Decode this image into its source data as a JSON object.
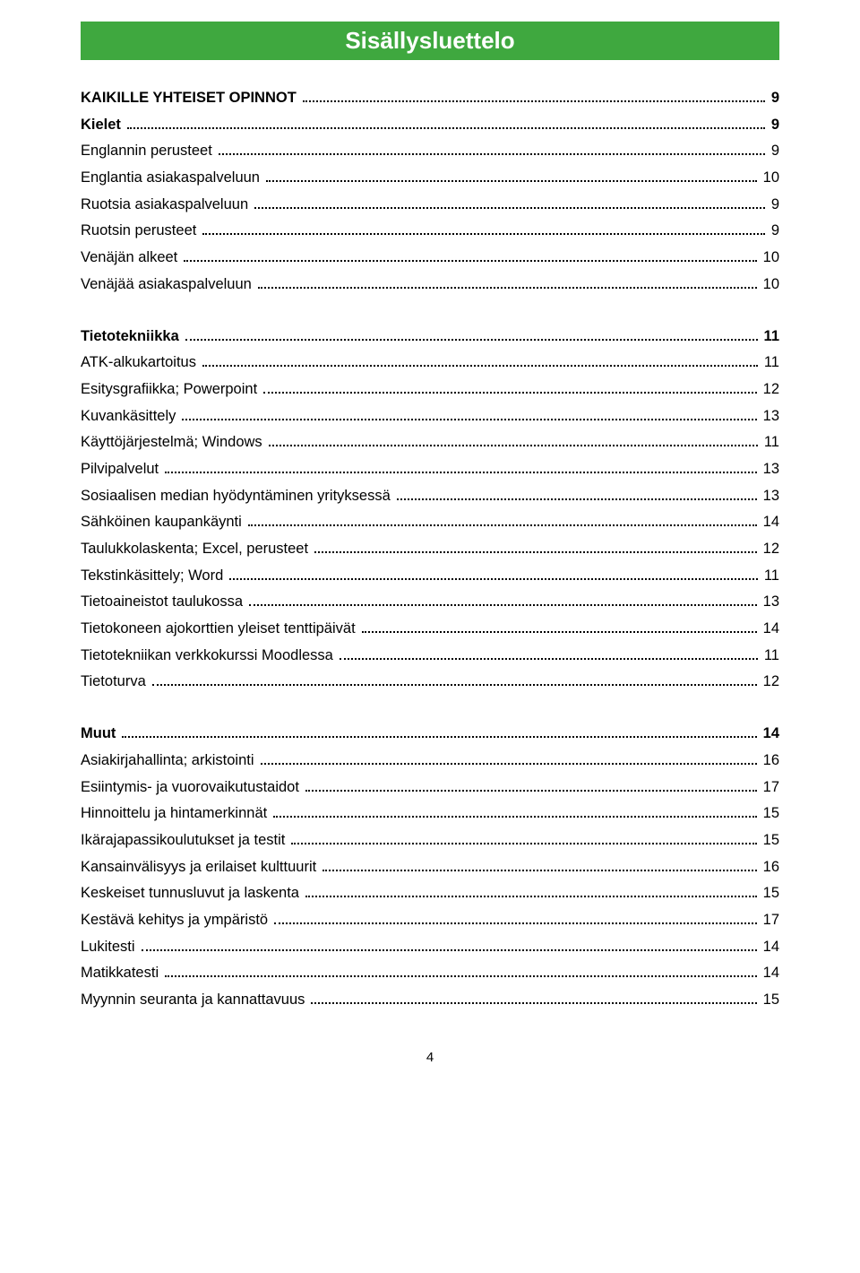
{
  "title": "Sisällysluettelo",
  "pageNumber": "4",
  "colors": {
    "titleBarBg": "#3fa83f",
    "titleText": "#ffffff",
    "bodyText": "#000000",
    "background": "#ffffff"
  },
  "typography": {
    "titleFontSize": 26,
    "bodyFontSize": 16.5,
    "lineHeight": 1.8
  },
  "sections": [
    {
      "label": "KAIKILLE YHTEISET OPINNOT",
      "page": "9",
      "bold": true
    },
    {
      "label": "Kielet",
      "page": "9",
      "bold": true
    },
    {
      "label": "Englannin perusteet",
      "page": "9",
      "bold": false
    },
    {
      "label": "Englantia asiakaspalveluun",
      "page": "10",
      "bold": false
    },
    {
      "label": "Ruotsia asiakaspalveluun",
      "page": "9",
      "bold": false
    },
    {
      "label": "Ruotsin perusteet",
      "page": "9",
      "bold": false
    },
    {
      "label": "Venäjän alkeet",
      "page": "10",
      "bold": false
    },
    {
      "label": "Venäjää asiakaspalveluun",
      "page": "10",
      "bold": false
    }
  ],
  "sections2": [
    {
      "label": "Tietotekniikka",
      "page": "11",
      "bold": true
    },
    {
      "label": "ATK-alkukartoitus",
      "page": "11",
      "bold": false
    },
    {
      "label": "Esitysgrafiikka; Powerpoint",
      "page": "12",
      "bold": false
    },
    {
      "label": "Kuvankäsittely",
      "page": "13",
      "bold": false
    },
    {
      "label": "Käyttöjärjestelmä; Windows",
      "page": "11",
      "bold": false
    },
    {
      "label": "Pilvipalvelut",
      "page": "13",
      "bold": false
    },
    {
      "label": "Sosiaalisen median hyödyntäminen yrityksessä",
      "page": "13",
      "bold": false
    },
    {
      "label": "Sähköinen kaupankäynti",
      "page": "14",
      "bold": false
    },
    {
      "label": "Taulukkolaskenta; Excel, perusteet",
      "page": "12",
      "bold": false
    },
    {
      "label": "Tekstinkäsittely; Word",
      "page": "11",
      "bold": false
    },
    {
      "label": "Tietoaineistot taulukossa",
      "page": "13",
      "bold": false
    },
    {
      "label": "Tietokoneen ajokorttien yleiset tenttipäivät",
      "page": "14",
      "bold": false
    },
    {
      "label": "Tietotekniikan verkkokurssi Moodlessa",
      "page": "11",
      "bold": false
    },
    {
      "label": "Tietoturva",
      "page": "12",
      "bold": false
    }
  ],
  "sections3": [
    {
      "label": "Muut",
      "page": "14",
      "bold": true
    },
    {
      "label": "Asiakirjahallinta; arkistointi",
      "page": "16",
      "bold": false
    },
    {
      "label": "Esiintymis- ja vuorovaikutustaidot",
      "page": "17",
      "bold": false
    },
    {
      "label": "Hinnoittelu ja hintamerkinnät",
      "page": "15",
      "bold": false
    },
    {
      "label": "Ikärajapassikoulutukset ja testit",
      "page": "15",
      "bold": false
    },
    {
      "label": "Kansainvälisyys ja erilaiset kulttuurit",
      "page": "16",
      "bold": false
    },
    {
      "label": "Keskeiset tunnusluvut ja laskenta",
      "page": "15",
      "bold": false
    },
    {
      "label": "Kestävä kehitys ja ympäristö",
      "page": "17",
      "bold": false
    },
    {
      "label": "Lukitesti",
      "page": "14",
      "bold": false
    },
    {
      "label": "Matikkatesti",
      "page": "14",
      "bold": false
    },
    {
      "label": "Myynnin seuranta ja kannattavuus",
      "page": "15",
      "bold": false
    }
  ]
}
